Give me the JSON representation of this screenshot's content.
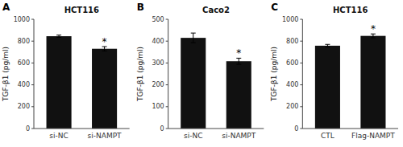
{
  "chart_data": [
    {
      "type": "bar",
      "title": "HCT116",
      "categories": [
        "si-NC",
        "si-NAMPT"
      ],
      "values": [
        845,
        730
      ],
      "errors": [
        10,
        20
      ],
      "ylim": [
        0,
        1000
      ],
      "yticks": [
        0,
        200,
        400,
        600,
        800,
        1000
      ],
      "ylabel": "TGF-β1 (pg/ml)",
      "color": "#111111",
      "annotations": [
        {
          "text": "A"
        },
        {
          "text": "*",
          "x": "si-NAMPT"
        }
      ]
    },
    {
      "type": "bar",
      "title": "Caco2",
      "categories": [
        "si-NC",
        "si-NAMPT"
      ],
      "values": [
        415,
        308
      ],
      "errors": [
        22,
        14
      ],
      "ylim": [
        0,
        500
      ],
      "yticks": [
        0,
        100,
        200,
        300,
        400,
        500
      ],
      "ylabel": "TGF-β1 (pg/ml)",
      "color": "#111111",
      "annotations": [
        {
          "text": "B"
        },
        {
          "text": "*",
          "x": "si-NAMPT"
        }
      ]
    },
    {
      "type": "bar",
      "title": "HCT116",
      "categories": [
        "CTL",
        "Flag-NAMPT"
      ],
      "values": [
        758,
        848
      ],
      "errors": [
        12,
        18
      ],
      "ylim": [
        0,
        1000
      ],
      "yticks": [
        0,
        200,
        400,
        600,
        800,
        1000
      ],
      "ylabel": "TGF-β1 (pg/ml)",
      "color": "#111111",
      "annotations": [
        {
          "text": "C"
        },
        {
          "text": "*",
          "x": "Flag-NAMPT"
        }
      ]
    }
  ]
}
